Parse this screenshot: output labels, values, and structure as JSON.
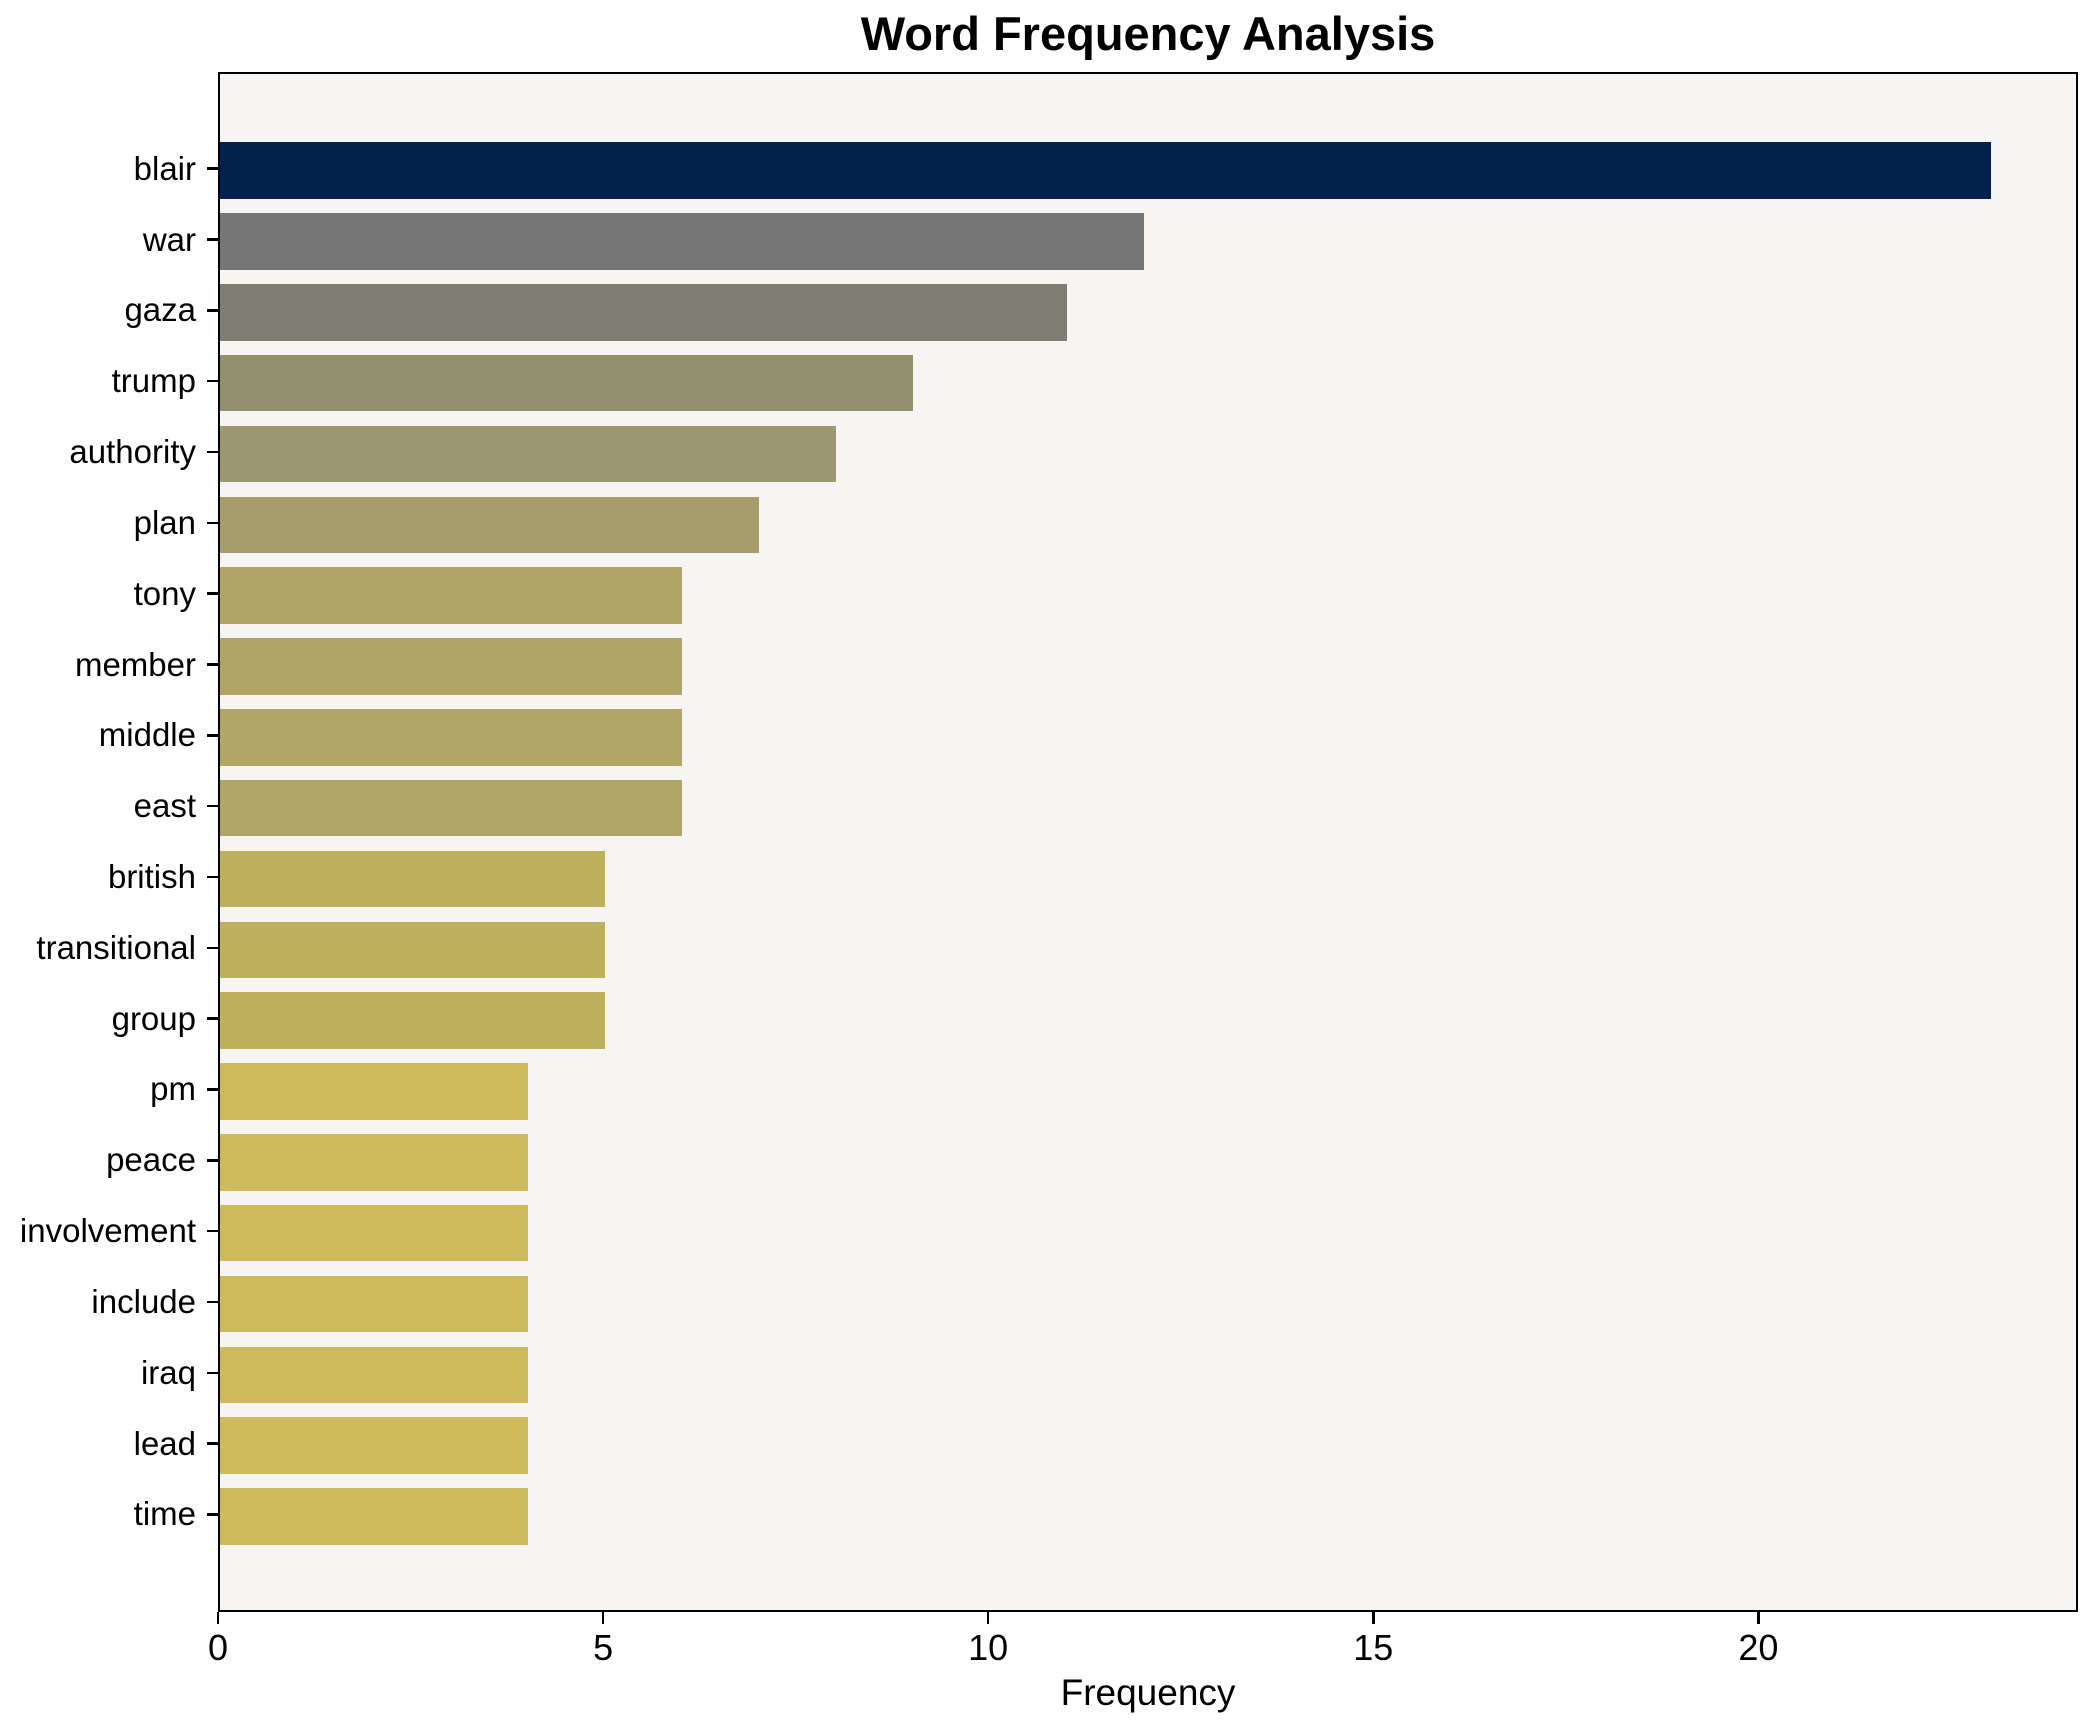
{
  "chart_data": {
    "type": "bar",
    "orientation": "horizontal",
    "title": "Word Frequency Analysis",
    "xlabel": "Frequency",
    "ylabel": "",
    "categories": [
      "blair",
      "war",
      "gaza",
      "trump",
      "authority",
      "plan",
      "tony",
      "member",
      "middle",
      "east",
      "british",
      "transitional",
      "group",
      "pm",
      "peace",
      "involvement",
      "include",
      "iraq",
      "lead",
      "time"
    ],
    "values": [
      23,
      12,
      11,
      9,
      8,
      7,
      6,
      6,
      6,
      6,
      5,
      5,
      5,
      4,
      4,
      4,
      4,
      4,
      4,
      4
    ],
    "bar_colors": [
      "#03214d",
      "#767676",
      "#7f7c73",
      "#92906f",
      "#9c9770",
      "#a69d6b",
      "#b0a566",
      "#b0a566",
      "#b1a665",
      "#b1a665",
      "#bfb060",
      "#bfb060",
      "#bfb060",
      "#ccba5c",
      "#ccba5c",
      "#ccba5c",
      "#ccba5c",
      "#ccba5c",
      "#ccba5c",
      "#ccba5c"
    ],
    "xticks": [
      0,
      5,
      10,
      15,
      20
    ],
    "xlim": [
      0,
      24.15
    ],
    "grid": false,
    "legend_position": "none",
    "plot_bg": "#f6f5f4",
    "figure_bg": "#ffffff",
    "spine_color": "#000000"
  }
}
